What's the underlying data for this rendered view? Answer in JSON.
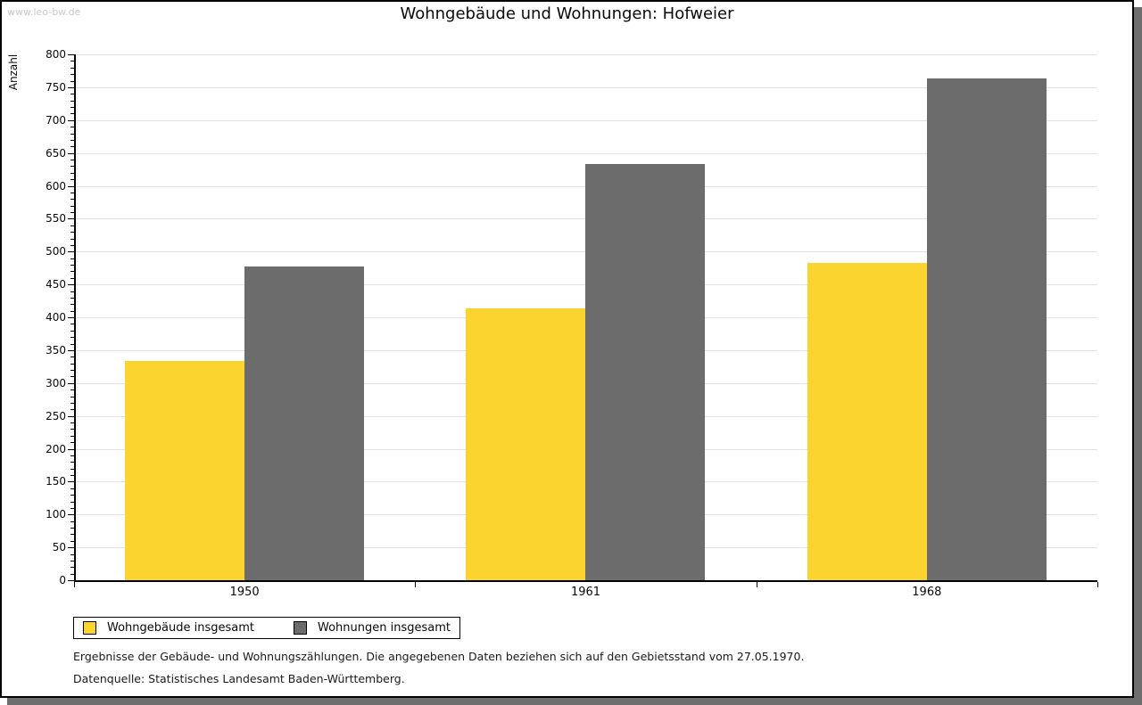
{
  "watermark": "www.leo-bw.de",
  "chart_data": {
    "type": "bar",
    "title": "Wohngebäude und Wohnungen: Hofweier",
    "xlabel": "",
    "ylabel": "Anzahl",
    "categories": [
      "1950",
      "1961",
      "1968"
    ],
    "series": [
      {
        "name": "Wohngebäude insgesamt",
        "color": "#FCD42F",
        "values": [
          333,
          414,
          483
        ]
      },
      {
        "name": "Wohnungen insgesamt",
        "color": "#6C6C6C",
        "values": [
          477,
          633,
          764
        ]
      }
    ],
    "ylim": [
      0,
      800
    ],
    "y_major_step": 50,
    "y_minor_step": 10,
    "grid": "horizontal",
    "legend_position": "bottom-left"
  },
  "footnotes": [
    "Ergebnisse der Gebäude- und Wohnungszählungen. Die angegebenen Daten beziehen sich auf den Gebietsstand vom 27.05.1970.",
    "Datenquelle: Statistisches Landesamt Baden-Württemberg."
  ],
  "colors": {
    "grid": "#e2e2e2",
    "axis": "#000000",
    "page_shadow": "#6e6e6e",
    "watermark": "#c9c9c9"
  }
}
